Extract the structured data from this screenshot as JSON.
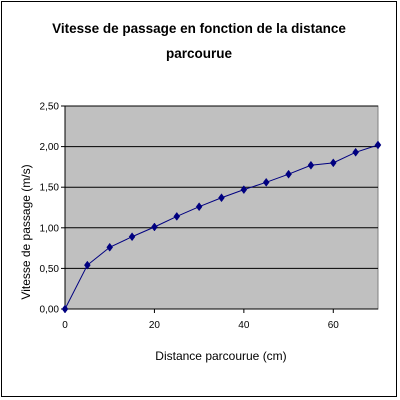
{
  "chart_data": {
    "type": "line",
    "title_line1": "Vitesse de passage en fonction de la distance",
    "title_line2": "parcourue",
    "xlabel": "Distance parcourue (cm)",
    "ylabel": "Vitesse de passage (m/s)",
    "xlim": [
      0,
      70
    ],
    "ylim": [
      0,
      2.5
    ],
    "x_ticks": [
      "0",
      "20",
      "40",
      "60"
    ],
    "y_ticks": [
      "0,00",
      "0,50",
      "1,00",
      "1,50",
      "2,00",
      "2,50"
    ],
    "grid": "horizontal",
    "plot_background": "#c0c0c0",
    "series": [
      {
        "color": "#000080",
        "x": [
          0,
          5,
          10,
          15,
          20,
          25,
          30,
          35,
          40,
          45,
          50,
          55,
          60,
          65,
          70
        ],
        "y": [
          0.0,
          0.54,
          0.76,
          0.89,
          1.01,
          1.14,
          1.26,
          1.37,
          1.47,
          1.56,
          1.66,
          1.77,
          1.8,
          1.93,
          2.02
        ]
      }
    ]
  }
}
